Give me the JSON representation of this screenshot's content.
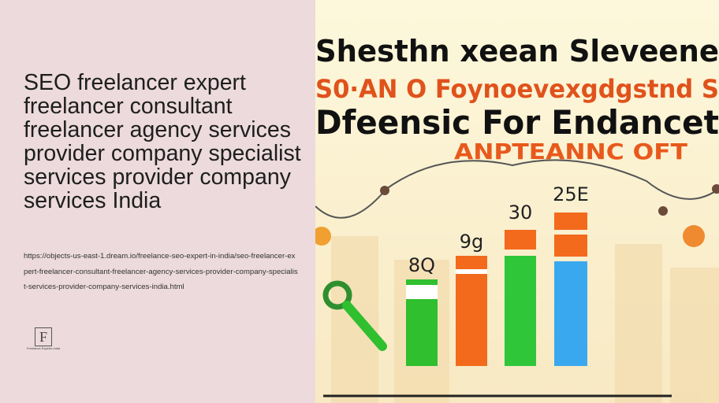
{
  "header": {
    "title": "SEO freelancer expert freelancer consultant freelancer agency services provider company specialist services provider company services India",
    "url": "https://objects-us-east-1.dream.io/freelance-seo-expert-in-india/seo-freelancer-expert-freelancer-consultant-freelancer-agency-services-provider-company-specialist-services-provider-company-services-india.html"
  },
  "logo": {
    "letter": "F",
    "text": "Freelance Experts India"
  },
  "image": {
    "texts": [
      "Shesthn xeean Sleveene",
      "S0·AN O Foynoevexgdgstnd S",
      "Dfeensic For Endancet",
      "ANPTEANNC OFT"
    ],
    "bar_labels": [
      "8Q",
      "9g",
      "30",
      "25E"
    ]
  }
}
